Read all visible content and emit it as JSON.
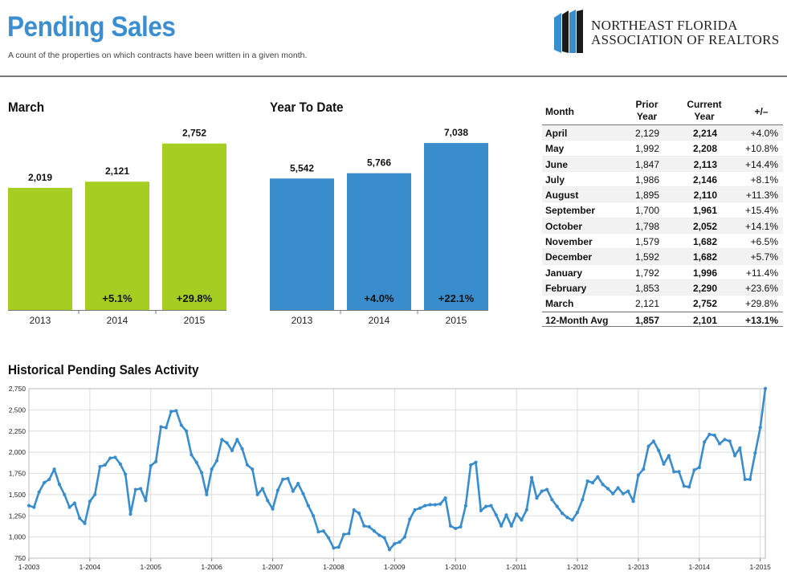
{
  "header": {
    "title": "Pending Sales",
    "subtitle": "A count of the properties on which contracts have been written in a given month.",
    "logo_line1": "NORTHEAST FLORIDA",
    "logo_line2": "ASSOCIATION OF REALTORS"
  },
  "colors": {
    "title_blue": "#3b8fd1",
    "march_bar": "#a6cd22",
    "ytd_bar": "#3a8dcc",
    "line": "#3a8dcc"
  },
  "sections": {
    "march_title": "March",
    "ytd_title": "Year To Date",
    "historical_title": "Historical Pending Sales Activity"
  },
  "chart_data": [
    {
      "type": "bar",
      "title": "March",
      "categories": [
        "2013",
        "2014",
        "2015"
      ],
      "values": [
        2019,
        2121,
        2752
      ],
      "value_labels": [
        "2,019",
        "2,121",
        "2,752"
      ],
      "changes": [
        "",
        "+5.1%",
        "+29.8%"
      ],
      "ylim": [
        0,
        3000
      ]
    },
    {
      "type": "bar",
      "title": "Year To Date",
      "categories": [
        "2013",
        "2014",
        "2015"
      ],
      "values": [
        5542,
        5766,
        7038
      ],
      "value_labels": [
        "5,542",
        "5,766",
        "7,038"
      ],
      "changes": [
        "",
        "+4.0%",
        "+22.1%"
      ],
      "ylim": [
        0,
        7650
      ]
    },
    {
      "type": "table",
      "headers": {
        "month": "Month",
        "prior_1": "Prior",
        "prior_2": "Year",
        "current_1": "Current",
        "current_2": "Year",
        "change": "+/–"
      },
      "rows": [
        {
          "month": "April",
          "prior": "2,129",
          "current": "2,214",
          "change": "+4.0%"
        },
        {
          "month": "May",
          "prior": "1,992",
          "current": "2,208",
          "change": "+10.8%"
        },
        {
          "month": "June",
          "prior": "1,847",
          "current": "2,113",
          "change": "+14.4%"
        },
        {
          "month": "July",
          "prior": "1,986",
          "current": "2,146",
          "change": "+8.1%"
        },
        {
          "month": "August",
          "prior": "1,895",
          "current": "2,110",
          "change": "+11.3%"
        },
        {
          "month": "September",
          "prior": "1,700",
          "current": "1,961",
          "change": "+15.4%"
        },
        {
          "month": "October",
          "prior": "1,798",
          "current": "2,052",
          "change": "+14.1%"
        },
        {
          "month": "November",
          "prior": "1,579",
          "current": "1,682",
          "change": "+6.5%"
        },
        {
          "month": "December",
          "prior": "1,592",
          "current": "1,682",
          "change": "+5.7%"
        },
        {
          "month": "January",
          "prior": "1,792",
          "current": "1,996",
          "change": "+11.4%"
        },
        {
          "month": "February",
          "prior": "1,853",
          "current": "2,290",
          "change": "+23.6%"
        },
        {
          "month": "March",
          "prior": "2,121",
          "current": "2,752",
          "change": "+29.8%"
        }
      ],
      "average": {
        "month": "12-Month Avg",
        "prior": "1,857",
        "current": "2,101",
        "change": "+13.1%"
      }
    },
    {
      "type": "line",
      "title": "Historical Pending Sales Activity",
      "x_start": "2003-01",
      "ylim": [
        750,
        2750
      ],
      "yticks": [
        750,
        1000,
        1250,
        1500,
        1750,
        2000,
        2250,
        2500,
        2750
      ],
      "ytick_labels": [
        "750",
        "1,000",
        "1,250",
        "1,500",
        "1,750",
        "2,000",
        "2,250",
        "2,500",
        "2,750"
      ],
      "xtick_labels": [
        "1-2003",
        "1-2004",
        "1-2005",
        "1-2006",
        "1-2007",
        "1-2008",
        "1-2009",
        "1-2010",
        "1-2011",
        "1-2012",
        "1-2013",
        "1-2014",
        "1-2015"
      ],
      "grid": true,
      "values": [
        1370,
        1350,
        1530,
        1640,
        1680,
        1800,
        1620,
        1500,
        1350,
        1400,
        1220,
        1160,
        1420,
        1500,
        1830,
        1850,
        1930,
        1940,
        1860,
        1740,
        1270,
        1560,
        1570,
        1430,
        1840,
        1890,
        2300,
        2290,
        2480,
        2490,
        2320,
        2250,
        1970,
        1880,
        1760,
        1500,
        1800,
        1900,
        2150,
        2110,
        2020,
        2150,
        2040,
        1850,
        1800,
        1500,
        1570,
        1430,
        1330,
        1550,
        1680,
        1690,
        1540,
        1630,
        1510,
        1370,
        1250,
        1060,
        1070,
        990,
        870,
        880,
        1030,
        1040,
        1320,
        1280,
        1130,
        1120,
        1070,
        1020,
        990,
        850,
        920,
        940,
        1000,
        1210,
        1320,
        1340,
        1370,
        1380,
        1380,
        1390,
        1460,
        1130,
        1100,
        1120,
        1370,
        1850,
        1880,
        1310,
        1360,
        1370,
        1260,
        1130,
        1260,
        1130,
        1270,
        1200,
        1320,
        1700,
        1460,
        1540,
        1560,
        1440,
        1360,
        1280,
        1230,
        1200,
        1290,
        1440,
        1660,
        1640,
        1710,
        1620,
        1570,
        1510,
        1580,
        1510,
        1540,
        1420,
        1730,
        1800,
        2070,
        2130,
        2020,
        1860,
        1960,
        1770,
        1770,
        1600,
        1590,
        1790,
        1820,
        2120,
        2210,
        2200,
        2100,
        2150,
        2130,
        1960,
        2050,
        1680,
        1680,
        1990,
        2290,
        2752
      ]
    }
  ]
}
